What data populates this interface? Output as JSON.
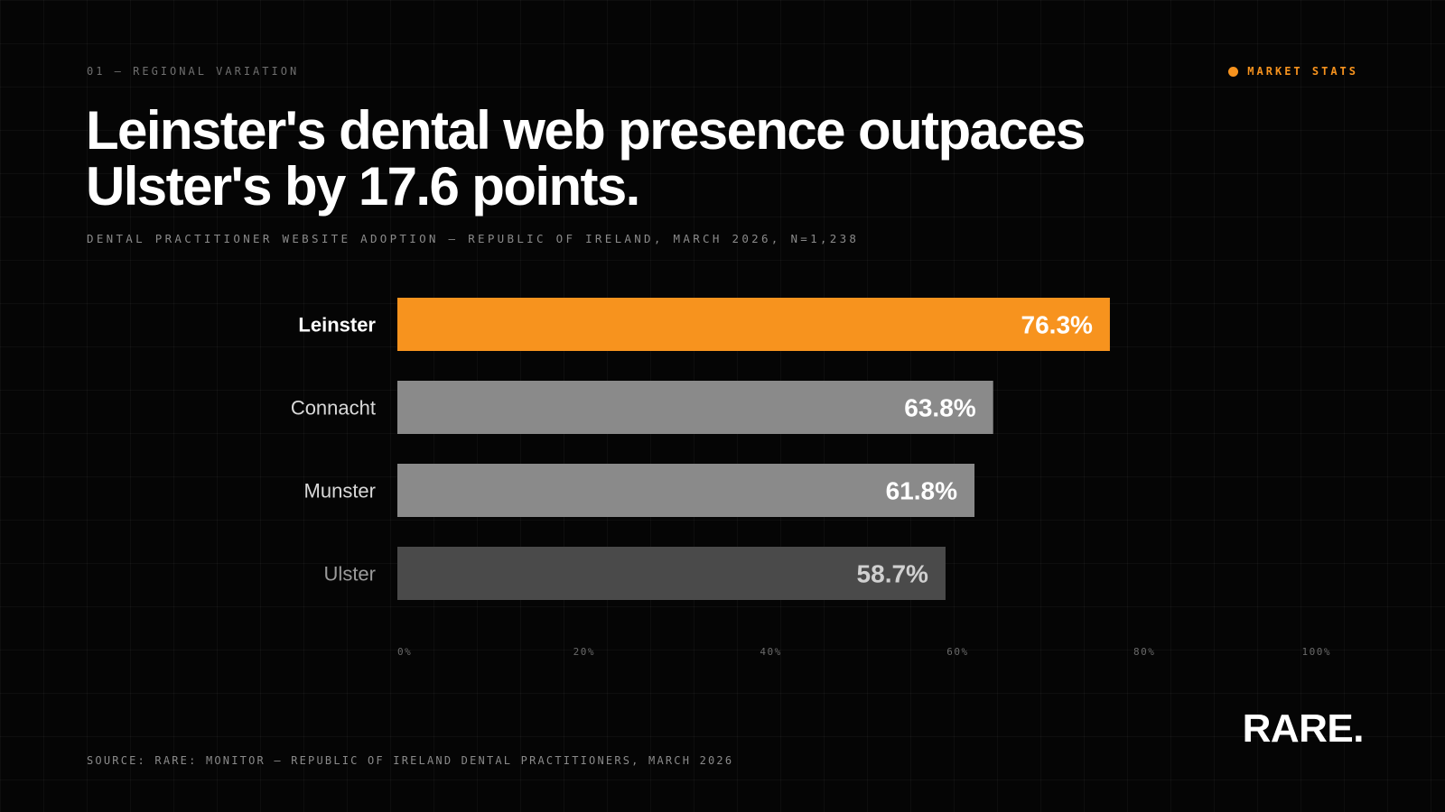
{
  "header": {
    "kicker": "01 — REGIONAL VARIATION",
    "tag": "MARKET STATS",
    "headline": "Leinster's dental web presence outpaces Ulster's by 17.6 points.",
    "subtitle": "DENTAL PRACTITIONER WEBSITE ADOPTION — REPUBLIC OF IRELAND, MARCH 2026, N=1,238"
  },
  "colors": {
    "accent": "#f7931e",
    "bar_mid": "#8a8a8a",
    "bar_low": "#4a4a4a",
    "background": "#050505"
  },
  "chart_data": {
    "type": "bar",
    "orientation": "horizontal",
    "categories": [
      "Leinster",
      "Connacht",
      "Munster",
      "Ulster"
    ],
    "values": [
      76.3,
      63.8,
      61.8,
      58.7
    ],
    "value_labels": [
      "76.3%",
      "63.8%",
      "61.8%",
      "58.7%"
    ],
    "xlim": [
      0,
      100
    ],
    "x_ticks": [
      0,
      20,
      40,
      60,
      80,
      100
    ],
    "x_tick_labels": [
      "0%",
      "20%",
      "40%",
      "60%",
      "80%",
      "100%"
    ],
    "highlight": "Leinster",
    "grid": true
  },
  "footer": {
    "source": "SOURCE: RARE: MONITOR — REPUBLIC OF IRELAND DENTAL PRACTITIONERS, MARCH 2026",
    "logo": "RARE."
  }
}
